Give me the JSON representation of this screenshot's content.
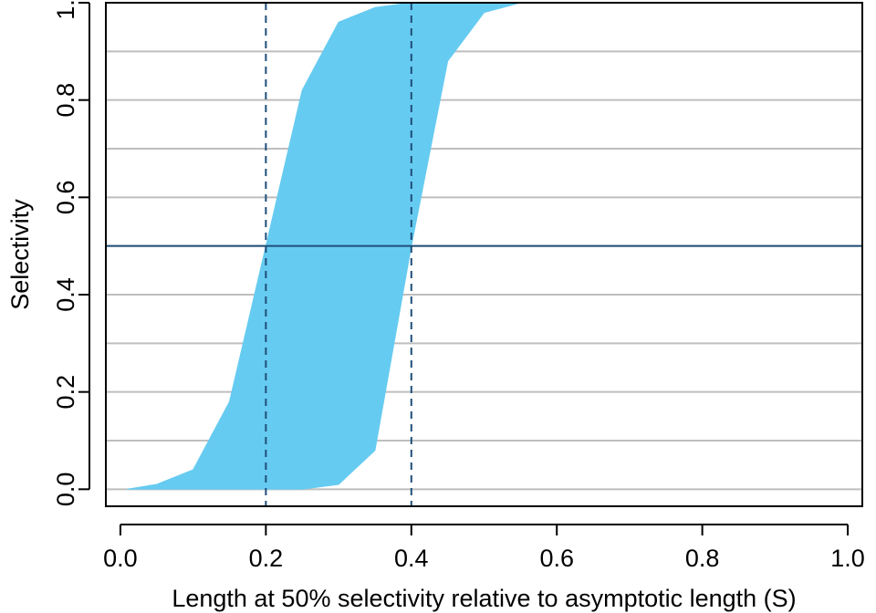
{
  "chart_data": {
    "type": "area",
    "title": "",
    "xlabel": "Length at 50% selectivity relative to asymptotic length (S)",
    "ylabel": "Selectivity",
    "xlim": [
      -0.02,
      1.02
    ],
    "ylim": [
      -0.035,
      1.0
    ],
    "x_ticks": [
      "0.0",
      "0.2",
      "0.4",
      "0.6",
      "0.8",
      "1.0"
    ],
    "y_ticks": [
      "0.0",
      "0.2",
      "0.4",
      "0.6",
      "0.8",
      "1.0"
    ],
    "grid": "horizontal",
    "grid_y": [
      0.0,
      0.1,
      0.2,
      0.3,
      0.4,
      0.5,
      0.6,
      0.7,
      0.8,
      0.9,
      1.0
    ],
    "reference_lines": {
      "horizontal": [
        0.5
      ],
      "vertical_dashed": [
        0.2,
        0.4
      ]
    },
    "band": {
      "x": [
        0.01,
        0.05,
        0.1,
        0.15,
        0.2,
        0.25,
        0.3,
        0.35,
        0.4,
        0.45,
        0.5,
        0.55,
        0.6,
        0.7,
        0.8,
        0.9,
        1.0
      ],
      "upper": [
        0.0,
        0.01,
        0.04,
        0.18,
        0.5,
        0.82,
        0.96,
        0.99,
        1.0,
        1.0,
        1.0,
        1.0,
        1.0,
        1.0,
        1.0,
        1.0,
        1.0
      ],
      "lower": [
        0.0,
        0.0,
        0.0,
        0.0,
        0.0,
        0.0,
        0.01,
        0.08,
        0.5,
        0.88,
        0.98,
        1.0,
        1.0,
        1.0,
        1.0,
        1.0,
        1.0
      ]
    },
    "colors": {
      "band": "#66CBF1",
      "grid": "#BEBEBE",
      "reference": "#1F4E79",
      "axis": "#000000"
    }
  }
}
